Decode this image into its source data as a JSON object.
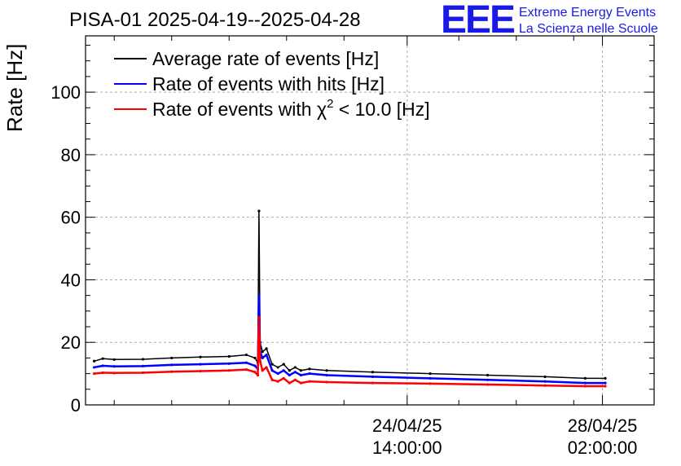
{
  "chart_data": {
    "type": "line",
    "title": "PISA-01 2025-04-19--2025-04-28",
    "ylabel": "Rate [Hz]",
    "xlabel": "",
    "ylim": [
      0,
      118
    ],
    "yticks": [
      0,
      20,
      40,
      60,
      80,
      100
    ],
    "xrange_days": [
      0,
      9.9
    ],
    "xticks": [
      {
        "x": 5.6,
        "label_date": "24/04/25",
        "label_time": "14:00:00"
      },
      {
        "x": 9.0,
        "label_date": "28/04/25",
        "label_time": "02:00:00"
      }
    ],
    "x_minor_ticks": [
      0.5,
      1.5,
      2.5,
      3.5,
      4.5,
      6.5,
      7.5,
      8.5
    ],
    "grid": true,
    "legend": "top-left",
    "series": [
      {
        "name": "Average rate of events [Hz]",
        "legend_main": "Average rate of events [Hz]",
        "color": "#000000",
        "x": [
          0.15,
          0.3,
          0.5,
          1.0,
          1.5,
          2.0,
          2.5,
          2.8,
          2.95,
          3.0,
          3.02,
          3.04,
          3.08,
          3.15,
          3.25,
          3.35,
          3.45,
          3.55,
          3.65,
          3.75,
          3.9,
          4.2,
          5.0,
          6.0,
          7.0,
          8.0,
          8.7,
          9.05
        ],
        "values": [
          14,
          14.8,
          14.5,
          14.6,
          15.0,
          15.3,
          15.5,
          16.0,
          15.0,
          13.5,
          62,
          20,
          17,
          18,
          13,
          12,
          13,
          11,
          12,
          11,
          11.5,
          11,
          10.5,
          10.0,
          9.5,
          9.0,
          8.5,
          8.5
        ]
      },
      {
        "name": "Rate of events with hits [Hz]",
        "legend_main": "Rate of events with hits [Hz]",
        "color": "#0000ff",
        "x": [
          0.15,
          0.3,
          0.5,
          1.0,
          1.5,
          2.0,
          2.5,
          2.8,
          2.95,
          3.0,
          3.02,
          3.04,
          3.08,
          3.15,
          3.25,
          3.35,
          3.45,
          3.55,
          3.65,
          3.75,
          3.9,
          4.2,
          5.0,
          6.0,
          7.0,
          8.0,
          8.7,
          9.05
        ],
        "values": [
          12,
          12.5,
          12.3,
          12.4,
          12.8,
          13.0,
          13.2,
          13.5,
          12.5,
          11.5,
          35,
          17,
          15,
          16,
          11,
          10,
          11,
          9.5,
          10.5,
          9.5,
          10,
          9.5,
          9.0,
          8.5,
          8.0,
          7.5,
          7.0,
          7.0
        ]
      },
      {
        "name": "Rate of events with χ² < 10.0 [Hz]",
        "legend_main": "Rate of events with χ",
        "legend_sup": "2",
        "legend_rest": " < 10.0 [Hz]",
        "color": "#ff0000",
        "x": [
          0.15,
          0.3,
          0.5,
          1.0,
          1.5,
          2.0,
          2.5,
          2.8,
          2.95,
          3.0,
          3.02,
          3.04,
          3.08,
          3.15,
          3.25,
          3.35,
          3.45,
          3.55,
          3.65,
          3.75,
          3.9,
          4.2,
          5.0,
          6.0,
          7.0,
          8.0,
          8.7,
          9.05
        ],
        "values": [
          10,
          10.3,
          10.2,
          10.3,
          10.6,
          10.8,
          11.0,
          11.3,
          10.5,
          9.5,
          28,
          14,
          11,
          12,
          8,
          7.5,
          8.5,
          7,
          8,
          7,
          7.5,
          7.3,
          7.0,
          6.8,
          6.5,
          6.2,
          6.0,
          6.0
        ]
      }
    ]
  },
  "header": {
    "title": "PISA-01 2025-04-19--2025-04-28"
  },
  "logo": {
    "mark": "EEE",
    "line1": "Extreme Energy Events",
    "line2": "La Scienza nelle Scuole"
  }
}
